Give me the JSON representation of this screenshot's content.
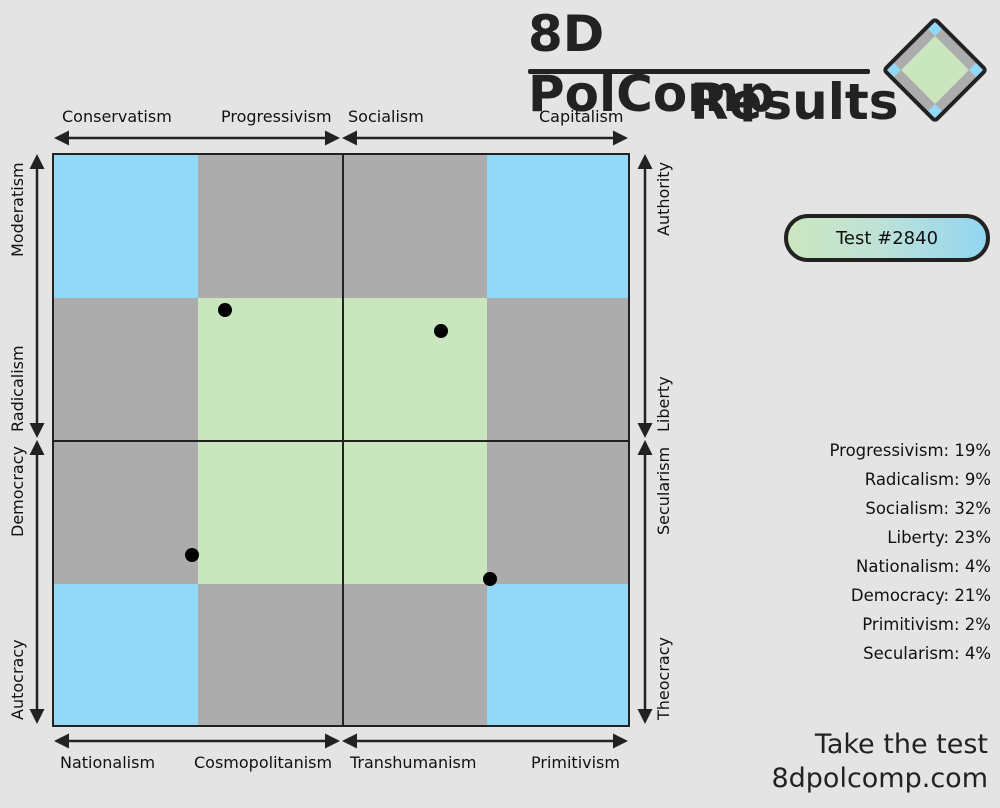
{
  "header": {
    "title_line1": "8D PolComp",
    "title_line2": "Results"
  },
  "colors": {
    "blue": "#93d9f7",
    "gray": "#acacac",
    "green": "#cae6bf",
    "line": "#222222",
    "background": "#e4e4e4"
  },
  "axes": {
    "top_left_start": "Conservatism",
    "top_left_end": "Progressivism",
    "top_right_start": "Socialism",
    "top_right_end": "Capitalism",
    "bottom_left_start": "Nationalism",
    "bottom_left_end": "Cosmopolitanism",
    "bottom_right_start": "Transhumanism",
    "bottom_right_end": "Primitivism",
    "left_top_start": "Moderatism",
    "left_top_end": "Radicalism",
    "left_bottom_start": "Democracy",
    "left_bottom_end": "Autocracy",
    "right_top_start": "Authority",
    "right_top_end": "Liberty",
    "right_bottom_start": "Secularism",
    "right_bottom_end": "Theocracy"
  },
  "test_badge": {
    "label": "Test #2840"
  },
  "stats": [
    "Progressivism: 19%",
    "Radicalism: 9%",
    "Socialism: 32%",
    "Liberty: 23%",
    "Nationalism: 4%",
    "Democracy: 21%",
    "Primitivism: 2%",
    "Secularism: 4%"
  ],
  "footer": {
    "line1": "Take the test",
    "line2": "8dpolcomp.com"
  }
}
